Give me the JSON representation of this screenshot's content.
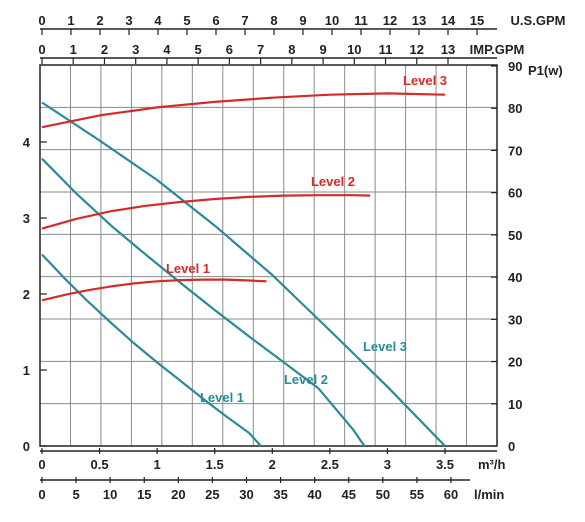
{
  "chart_data": {
    "type": "line",
    "axes": {
      "us_gpm": {
        "label": "U.S.GPM",
        "ticks": [
          "0",
          "1",
          "2",
          "3",
          "4",
          "5",
          "6",
          "7",
          "8",
          "9",
          "10",
          "11",
          "12",
          "13",
          "14",
          "15"
        ]
      },
      "imp_gpm": {
        "label": "IMP.GPM",
        "ticks": [
          "0",
          "1",
          "2",
          "3",
          "4",
          "5",
          "6",
          "7",
          "8",
          "9",
          "10",
          "11",
          "12",
          "13"
        ]
      },
      "m3h": {
        "label": "m³/h",
        "ticks": [
          "0",
          "0.5",
          "1",
          "1.5",
          "2",
          "2.5",
          "3",
          "3.5"
        ],
        "range": [
          0,
          3.9
        ]
      },
      "lmin": {
        "label": "l/min",
        "ticks": [
          "0",
          "5",
          "10",
          "15",
          "20",
          "25",
          "30",
          "35",
          "40",
          "45",
          "50",
          "55",
          "60"
        ]
      },
      "head": {
        "label": "",
        "ticks": [
          "0",
          "1",
          "2",
          "3",
          "4"
        ],
        "range": [
          0,
          5
        ]
      },
      "power": {
        "label": "P1(w)",
        "ticks": [
          "0",
          "10",
          "20",
          "30",
          "40",
          "50",
          "60",
          "70",
          "80",
          "90"
        ],
        "range": [
          0,
          90
        ]
      }
    },
    "head_series": [
      {
        "name": "Level 1",
        "label": "Level 1",
        "x": [
          0,
          0.2,
          0.4,
          0.6,
          0.8,
          1.0,
          1.2,
          1.4,
          1.6,
          1.8,
          1.9
        ],
        "y": [
          2.52,
          2.2,
          1.9,
          1.62,
          1.35,
          1.1,
          0.86,
          0.62,
          0.39,
          0.17,
          0
        ]
      },
      {
        "name": "Level 2",
        "label": "Level 2",
        "x": [
          0,
          0.3,
          0.6,
          0.9,
          1.2,
          1.5,
          1.8,
          2.1,
          2.4,
          2.7,
          2.8
        ],
        "y": [
          3.78,
          3.32,
          2.9,
          2.52,
          2.15,
          1.79,
          1.44,
          1.1,
          0.76,
          0.22,
          0
        ]
      },
      {
        "name": "Level 3",
        "label": "Level 3",
        "x": [
          0,
          0.5,
          1.0,
          1.5,
          2.0,
          2.5,
          3.0,
          3.5
        ],
        "y": [
          4.52,
          4.02,
          3.5,
          2.9,
          2.25,
          1.52,
          0.78,
          0
        ]
      }
    ],
    "power_series": [
      {
        "name": "Level 1",
        "label": "Level 1",
        "x": [
          0,
          0.2,
          0.4,
          0.6,
          0.8,
          1.0,
          1.2,
          1.4,
          1.6,
          1.8,
          1.95
        ],
        "y": [
          34.5,
          35.8,
          36.9,
          37.8,
          38.5,
          39.0,
          39.3,
          39.4,
          39.4,
          39.2,
          39.0
        ]
      },
      {
        "name": "Level 2",
        "label": "Level 2",
        "x": [
          0,
          0.3,
          0.6,
          0.9,
          1.2,
          1.5,
          1.8,
          2.1,
          2.4,
          2.7,
          2.85
        ],
        "y": [
          51.5,
          53.8,
          55.6,
          56.9,
          57.8,
          58.5,
          59.0,
          59.3,
          59.4,
          59.4,
          59.3
        ]
      },
      {
        "name": "Level 3",
        "label": "Level 3",
        "x": [
          0,
          0.5,
          1.0,
          1.5,
          2.0,
          2.5,
          3.0,
          3.5
        ],
        "y": [
          75.5,
          78.3,
          80.2,
          81.5,
          82.5,
          83.2,
          83.5,
          83.2
        ]
      }
    ],
    "colors": {
      "head": "#2a8a97",
      "power": "#d42a2a",
      "grid": "#8a8a8a"
    },
    "grid": true
  }
}
